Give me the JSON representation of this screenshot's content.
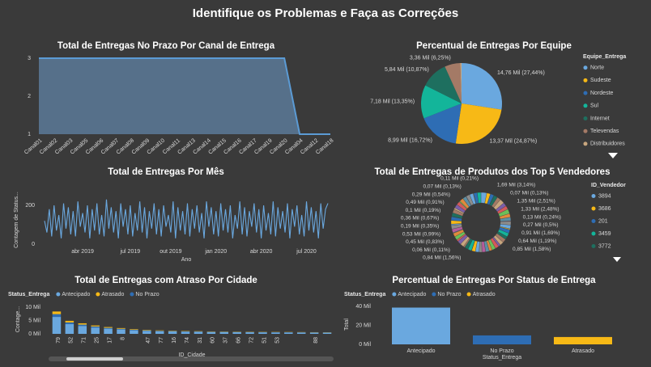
{
  "header": {
    "title": "Identifique os Problemas e Faça as Correções"
  },
  "chart_data": [
    {
      "type": "area",
      "title": "Total de Entregas No Prazo Por Canal de Entrega",
      "categories": [
        "Canal01",
        "Canal02",
        "Canal03",
        "Canal05",
        "Canal06",
        "Canal07",
        "Canal08",
        "Canal09",
        "Canal10",
        "Canal11",
        "Canal13",
        "Canal14",
        "Canal15",
        "Canal16",
        "Canal17",
        "Canal19",
        "Canal20",
        "Canal04",
        "Canal12",
        "Canal18"
      ],
      "values": [
        3,
        3,
        3,
        3,
        3,
        3,
        3,
        3,
        3,
        3,
        3,
        3,
        3,
        3,
        3,
        3,
        3,
        1,
        1,
        1
      ],
      "color": "#5b9bd5",
      "fill": "#56708a",
      "ylim": [
        1,
        3
      ],
      "yticks": [
        1,
        2,
        3
      ]
    },
    {
      "type": "pie",
      "title": "Percentual de Entregas Por Equipe",
      "legend_title": "Equipe_Entrega",
      "categories": [
        "Norte",
        "Sudeste",
        "Nordeste",
        "Sul",
        "Internet",
        "Televendas",
        "Distribuidores"
      ],
      "values": [
        27.44,
        24.87,
        16.72,
        13.35,
        10.87,
        6.25,
        0.5
      ],
      "value_labels": [
        "14,76 Mil (27,44%)",
        "13,37 Mil (24,87%)",
        "8,99 Mil (16,72%)",
        "7,18 Mil (13,35%)",
        "5,84 Mil (10,87%)",
        "3,36 Mil (6,25%)",
        null
      ],
      "colors": [
        "#6aa8df",
        "#f7b916",
        "#2e6db4",
        "#13b59a",
        "#1e6f5f",
        "#a47a66",
        "#c8a67e"
      ]
    },
    {
      "type": "line",
      "title": "Total de Entregas Por Mês",
      "ylabel": "Contagem de Status...",
      "xlabel": "Ano",
      "values": [
        120,
        60,
        180,
        40,
        200,
        70,
        150,
        30,
        210,
        80,
        190,
        50,
        170,
        40,
        220,
        90,
        160,
        60,
        200,
        30,
        180,
        70,
        210,
        50,
        150,
        40,
        230,
        80,
        190,
        60,
        170,
        30,
        210,
        90,
        180,
        50,
        200,
        40,
        160,
        70,
        220,
        60,
        190,
        30,
        170,
        80,
        210,
        50,
        180,
        40,
        200,
        90,
        150,
        60,
        220,
        30,
        190,
        70,
        170,
        50,
        210,
        40,
        180,
        80,
        200,
        60,
        160,
        30,
        220,
        90,
        190,
        50,
        170,
        40,
        210,
        70,
        180,
        60,
        200,
        30,
        150,
        80,
        220,
        50,
        190,
        40,
        170,
        90,
        210,
        60,
        180,
        30,
        200,
        70,
        160,
        50,
        220,
        40,
        190,
        80,
        170,
        60,
        210,
        30,
        180,
        90,
        200,
        50,
        150,
        40,
        220,
        70,
        190,
        60,
        170,
        30,
        210,
        80,
        180,
        210
      ],
      "color": "#6aa8df",
      "ylim": [
        0,
        250
      ],
      "yticks": [
        0,
        200
      ],
      "xlim": [
        0,
        119
      ],
      "xticks": [
        {
          "value": 16,
          "label": "abr 2019"
        },
        {
          "value": 36,
          "label": "jul 2019"
        },
        {
          "value": 53,
          "label": "out 2019"
        },
        {
          "value": 72,
          "label": "jan 2020"
        },
        {
          "value": 91,
          "label": "abr 2020"
        },
        {
          "value": 110,
          "label": "jul 2020"
        }
      ]
    },
    {
      "type": "pie",
      "donut": true,
      "title": "Total de Entregas de Produtos dos Top 5 Vendedores",
      "legend_title": "ID_Vendedor",
      "legend_items": [
        {
          "name": "3894",
          "color": "#6aa8df"
        },
        {
          "name": "3686",
          "color": "#f7b916"
        },
        {
          "name": "201",
          "color": "#2e6db4"
        },
        {
          "name": "3459",
          "color": "#13b59a"
        },
        {
          "name": "3772",
          "color": "#1e6f5f"
        }
      ],
      "values": [
        3.14,
        2,
        2,
        0.13,
        2,
        2,
        2.51,
        2,
        2,
        2.48,
        2,
        2,
        0.24,
        2,
        2,
        0.5,
        2,
        2,
        1.69,
        2,
        2,
        1.19,
        2,
        2,
        1.58,
        2,
        2,
        1.56,
        2,
        2,
        0.11,
        2,
        2,
        0.83,
        2,
        2,
        0.99,
        2,
        2,
        0.35,
        2,
        2,
        0.67,
        2,
        2,
        0.19,
        2,
        2,
        0.91,
        2,
        2,
        0.54,
        2,
        2,
        0.13,
        2,
        2,
        0.21,
        2,
        2
      ],
      "value_labels": [
        "1,69 Mil (3,14%)",
        null,
        null,
        "0,07 Mil (0,13%)",
        null,
        null,
        "1,35 Mil (2,51%)",
        null,
        null,
        "1,33 Mil (2,48%)",
        null,
        null,
        "0,13 Mil (0,24%)",
        null,
        null,
        "0,27 Mil (0,5%)",
        null,
        null,
        "0,91 Mil (1,69%)",
        null,
        null,
        "0,64 Mil (1,19%)",
        null,
        null,
        "0,85 Mil (1,58%)",
        null,
        null,
        "0,84 Mil (1,56%)",
        null,
        null,
        "0,06 Mil (0,11%)",
        null,
        null,
        "0,45 Mil (0,83%)",
        null,
        null,
        "0,53 Mil (0,99%)",
        null,
        null,
        "0,19 Mil (0,35%)",
        null,
        null,
        "0,36 Mil (0,67%)",
        null,
        null,
        "0,1 Mil (0,19%)",
        null,
        null,
        "0,49 Mil (0,91%)",
        null,
        null,
        "0,29 Mil (0,54%)",
        null,
        null,
        "0,07 Mil (0,13%)",
        null,
        null,
        "0,11 Mil (0,21%)",
        null,
        null
      ],
      "palette": [
        "#6aa8df",
        "#f7b916",
        "#2e6db4",
        "#13b59a",
        "#1e6f5f",
        "#a47a66",
        "#c8a67e",
        "#7b5ea8",
        "#d45a5a",
        "#6bbf59",
        "#e08a3c",
        "#5c8fa3",
        "#b55d9b",
        "#8c8c8c"
      ]
    },
    {
      "type": "stacked_bar",
      "title": "Total de Entregas com Atraso Por Cidade",
      "legend_title": "Status_Entrega",
      "ylabel": "Contage...",
      "xlabel": "ID_Cidade",
      "categories": [
        "79",
        "52",
        "71",
        "25",
        "17",
        "8",
        null,
        "47",
        "77",
        "16",
        "74",
        "31",
        "60",
        "37",
        "66",
        "72",
        "51",
        "53",
        null,
        null,
        "88",
        null
      ],
      "series": [
        {
          "name": "Antecipado",
          "color": "#6aa8df",
          "values": [
            6400,
            3700,
            3000,
            2400,
            1950,
            1650,
            1350,
            1150,
            1000,
            900,
            820,
            760,
            700,
            680,
            620,
            600,
            580,
            540,
            520,
            500,
            470,
            450
          ]
        },
        {
          "name": "No Prazo",
          "color": "#2e6db4",
          "values": [
            1050,
            620,
            500,
            400,
            320,
            270,
            220,
            190,
            160,
            150,
            135,
            125,
            115,
            110,
            100,
            100,
            95,
            90,
            85,
            80,
            78,
            75
          ]
        },
        {
          "name": "Atrasado",
          "color": "#f7b916",
          "values": [
            1000,
            600,
            480,
            380,
            310,
            260,
            210,
            180,
            155,
            140,
            130,
            120,
            110,
            105,
            98,
            95,
            90,
            85,
            80,
            78,
            75,
            72
          ]
        }
      ],
      "legend_order": [
        0,
        2,
        1
      ],
      "ylim": [
        0,
        11000
      ],
      "yticks": [
        {
          "value": 0,
          "label": "0 Mil"
        },
        {
          "value": 5000,
          "label": "5 Mil"
        },
        {
          "value": 10000,
          "label": "10 Mil"
        }
      ]
    },
    {
      "type": "bar",
      "title": "Percentual de Entregas Por Status de Entrega",
      "legend_title": "Status_Entrega",
      "ylabel": "Total",
      "xlabel": "Status_Entrega",
      "categories": [
        "Antecipado",
        "No Prazo",
        "Atrasado"
      ],
      "values": [
        39000,
        9500,
        7800
      ],
      "colors": [
        "#6aa8df",
        "#2e6db4",
        "#f7b916"
      ],
      "ylim": [
        0,
        42000
      ],
      "yticks": [
        {
          "value": 0,
          "label": "0 Mil"
        },
        {
          "value": 20000,
          "label": "20 Mil"
        },
        {
          "value": 40000,
          "label": "40 Mil"
        }
      ]
    }
  ]
}
